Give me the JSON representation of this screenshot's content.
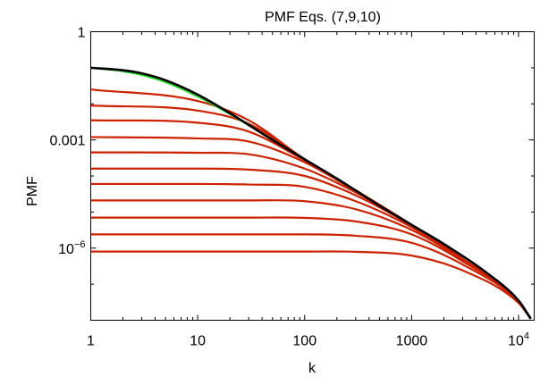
{
  "chart_data": {
    "type": "line",
    "title": "PMF Eqs. (7,9,10)",
    "xlabel": "k",
    "ylabel": "PMF",
    "xscale": "log",
    "yscale": "log",
    "xlim": [
      1,
      14000
    ],
    "ylim": [
      1e-08,
      1
    ],
    "grid": false,
    "legend": "none",
    "x_ticks": [
      {
        "value": 1,
        "label": "1"
      },
      {
        "value": 10,
        "label": "10"
      },
      {
        "value": 100,
        "label": "100"
      },
      {
        "value": 1000,
        "label": "1000"
      },
      {
        "value": 10000,
        "label": "10",
        "exp": "4"
      }
    ],
    "y_ticks": [
      {
        "value": 1,
        "label": "1"
      },
      {
        "value": 0.001,
        "label": "0.001"
      },
      {
        "value": 1e-06,
        "label": "10",
        "exp": "−6"
      }
    ],
    "colors": {
      "black_curve": "#000000",
      "green_curve": "#22dd22",
      "red_curves": "#cc2200",
      "orange_curves": "#d98a1a"
    },
    "series": [
      {
        "color": "black_curve",
        "x": [
          1,
          2,
          3,
          5,
          10,
          20,
          50,
          100,
          200,
          500,
          1000,
          2000,
          5000,
          10000,
          13000
        ],
        "values": [
          0.1,
          0.085,
          0.07,
          0.045,
          0.018,
          0.0055,
          0.001,
          0.00029,
          8.5e-05,
          1.5e-05,
          4.4e-06,
          1.3e-06,
          2.1e-07,
          3.5e-08,
          1.1e-08
        ]
      },
      {
        "color": "green_curve",
        "x": [
          1,
          2,
          3,
          5,
          10,
          20,
          50
        ],
        "values": [
          0.1,
          0.08,
          0.063,
          0.04,
          0.016,
          0.0052,
          0.001
        ]
      },
      {
        "color": "red_curves",
        "x": [
          1,
          10,
          30,
          100,
          300,
          1000,
          3000,
          10000,
          13000
        ],
        "values": [
          0.025,
          0.012,
          0.0035,
          0.00029,
          4e-05,
          4.4e-06,
          5e-07,
          3.5e-08,
          1.1e-08
        ]
      },
      {
        "color": "red_curves",
        "x": [
          1,
          10,
          30,
          100,
          300,
          1000,
          3000,
          10000,
          13000
        ],
        "values": [
          0.009,
          0.0065,
          0.0028,
          0.00029,
          4e-05,
          4.4e-06,
          5e-07,
          3.5e-08,
          1.1e-08
        ]
      },
      {
        "color": "red_curves",
        "x": [
          1,
          10,
          30,
          100,
          300,
          1000,
          3000,
          10000,
          13000
        ],
        "values": [
          0.0035,
          0.003,
          0.0017,
          0.00027,
          4e-05,
          4.4e-06,
          5e-07,
          3.5e-08,
          1.1e-08
        ]
      },
      {
        "color": "red_curves",
        "x": [
          1,
          10,
          30,
          100,
          300,
          1000,
          3000,
          10000,
          13000
        ],
        "values": [
          0.0012,
          0.0011,
          0.0009,
          0.00024,
          3.8e-05,
          4.4e-06,
          5e-07,
          3.5e-08,
          1.1e-08
        ]
      },
      {
        "color": "red_curves",
        "x": [
          1,
          10,
          30,
          100,
          300,
          1000,
          3000,
          10000,
          13000
        ],
        "values": [
          0.00045,
          0.00044,
          0.0004,
          0.00016,
          3.5e-05,
          4.3e-06,
          5e-07,
          3.5e-08,
          1.1e-08
        ]
      },
      {
        "color": "red_curves",
        "x": [
          1,
          10,
          30,
          100,
          300,
          1000,
          3000,
          10000,
          13000
        ],
        "values": [
          0.00016,
          0.00016,
          0.00015,
          0.0001,
          2.9e-05,
          4.2e-06,
          5e-07,
          3.5e-08,
          1.1e-08
        ]
      },
      {
        "color": "red_curves",
        "x": [
          1,
          10,
          30,
          100,
          300,
          1000,
          3000,
          10000,
          13000
        ],
        "values": [
          6e-05,
          6e-05,
          5.8e-05,
          5e-05,
          2e-05,
          3.8e-06,
          4.9e-07,
          3.5e-08,
          1.1e-08
        ]
      },
      {
        "color": "red_curves",
        "x": [
          1,
          10,
          30,
          100,
          300,
          1000,
          3000,
          10000,
          13000
        ],
        "values": [
          2.1e-05,
          2.1e-05,
          2.1e-05,
          2e-05,
          1.2e-05,
          3.2e-06,
          4.7e-07,
          3.4e-08,
          1.1e-08
        ]
      },
      {
        "color": "red_curves",
        "x": [
          1,
          10,
          30,
          100,
          300,
          1000,
          3000,
          10000,
          13000
        ],
        "values": [
          7e-06,
          7e-06,
          7e-06,
          6.9e-06,
          5.5e-06,
          2.4e-06,
          4.3e-07,
          3.4e-08,
          1.1e-08
        ]
      },
      {
        "color": "red_curves",
        "x": [
          1,
          10,
          30,
          100,
          300,
          1000,
          3000,
          10000,
          13000
        ],
        "values": [
          2.4e-06,
          2.4e-06,
          2.4e-06,
          2.4e-06,
          2.2e-06,
          1.4e-06,
          3.5e-07,
          3.2e-08,
          1.1e-08
        ]
      },
      {
        "color": "red_curves",
        "x": [
          1,
          10,
          30,
          100,
          300,
          1000,
          3000,
          10000,
          13000
        ],
        "values": [
          8e-07,
          8e-07,
          8e-07,
          8e-07,
          7.9e-07,
          6.2e-07,
          2.4e-07,
          3e-08,
          1.1e-08
        ]
      }
    ]
  }
}
